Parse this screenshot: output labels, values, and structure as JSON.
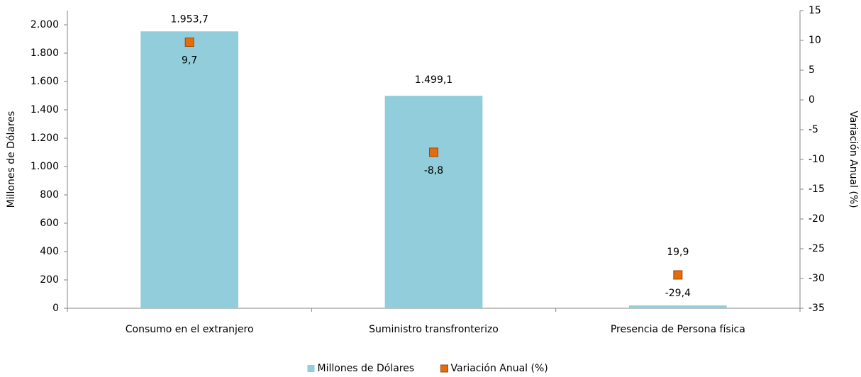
{
  "chart_data": {
    "type": "bar",
    "categories": [
      "Consumo en el extranjero",
      "Suministro transfronterizo",
      "Presencia de Persona física"
    ],
    "series": [
      {
        "name": "Millones de Dólares",
        "type": "bar",
        "color": "#92cddc",
        "values": [
          1953.7,
          1499.1,
          19.9
        ],
        "value_labels": [
          "1.953,7",
          "1.499,1",
          "19,9"
        ]
      },
      {
        "name": "Variación Anual (%)",
        "type": "marker",
        "axis": "y2",
        "color": "#e46c0a",
        "values": [
          9.7,
          -8.8,
          -29.4
        ],
        "value_labels": [
          "9,7",
          "-8,8",
          "-29,4"
        ]
      }
    ],
    "ylabel": "Millones de Dólares",
    "y2label": "Variación Anual (%)",
    "ylim": [
      0,
      2100
    ],
    "yticks": [
      0,
      200,
      400,
      600,
      800,
      {
        "value": 1000,
        "label": "1.000"
      },
      {
        "value": 1200,
        "label": "1.200"
      },
      {
        "value": 1400,
        "label": "1.400"
      },
      {
        "value": 1600,
        "label": "1.600"
      },
      {
        "value": 1800,
        "label": "1.800"
      },
      {
        "value": 2000,
        "label": "2.000"
      }
    ],
    "y2lim": [
      -35,
      15
    ],
    "y2ticks": [
      -35,
      -30,
      -25,
      -20,
      -15,
      -10,
      -5,
      0,
      5,
      10,
      15
    ],
    "legend": "bottom"
  }
}
